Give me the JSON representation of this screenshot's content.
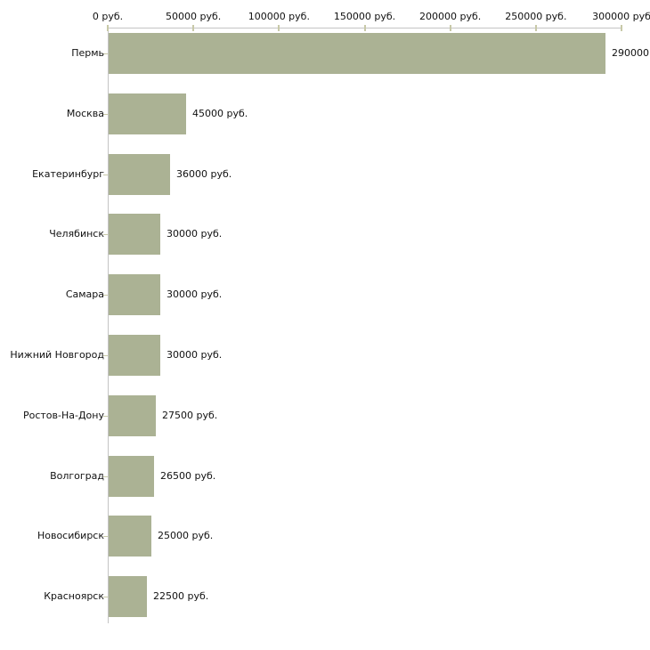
{
  "chart_data": {
    "type": "bar",
    "orientation": "horizontal",
    "title": "",
    "xlabel": "",
    "ylabel": "",
    "categories": [
      "Пермь",
      "Москва",
      "Екатеринбург",
      "Челябинск",
      "Самара",
      "Нижний Новгород",
      "Ростов-На-Дону",
      "Волгоград",
      "Новосибирск",
      "Красноярск"
    ],
    "values": [
      290000,
      45000,
      36000,
      30000,
      30000,
      30000,
      27500,
      26500,
      25000,
      22500
    ],
    "value_labels": [
      "290000",
      "45000 руб.",
      "36000 руб.",
      "30000 руб.",
      "30000 руб.",
      "30000 руб.",
      "27500 руб.",
      "26500 руб.",
      "25000 руб.",
      "22500 руб."
    ],
    "x_axis": {
      "position": "top",
      "range": [
        0,
        300000
      ],
      "tick_values": [
        0,
        50000,
        100000,
        150000,
        200000,
        250000,
        300000
      ],
      "tick_labels": [
        "0 руб.",
        "50000 руб.",
        "100000 руб.",
        "150000 руб.",
        "200000 руб.",
        "250000 руб.",
        "300000 руб"
      ]
    },
    "grid": false,
    "legend": false,
    "colors": {
      "bar": "#abb294",
      "axis_line": "#c4c4c4",
      "tick": "#c8c9a8",
      "text": "#111111",
      "background": "#ffffff"
    }
  }
}
